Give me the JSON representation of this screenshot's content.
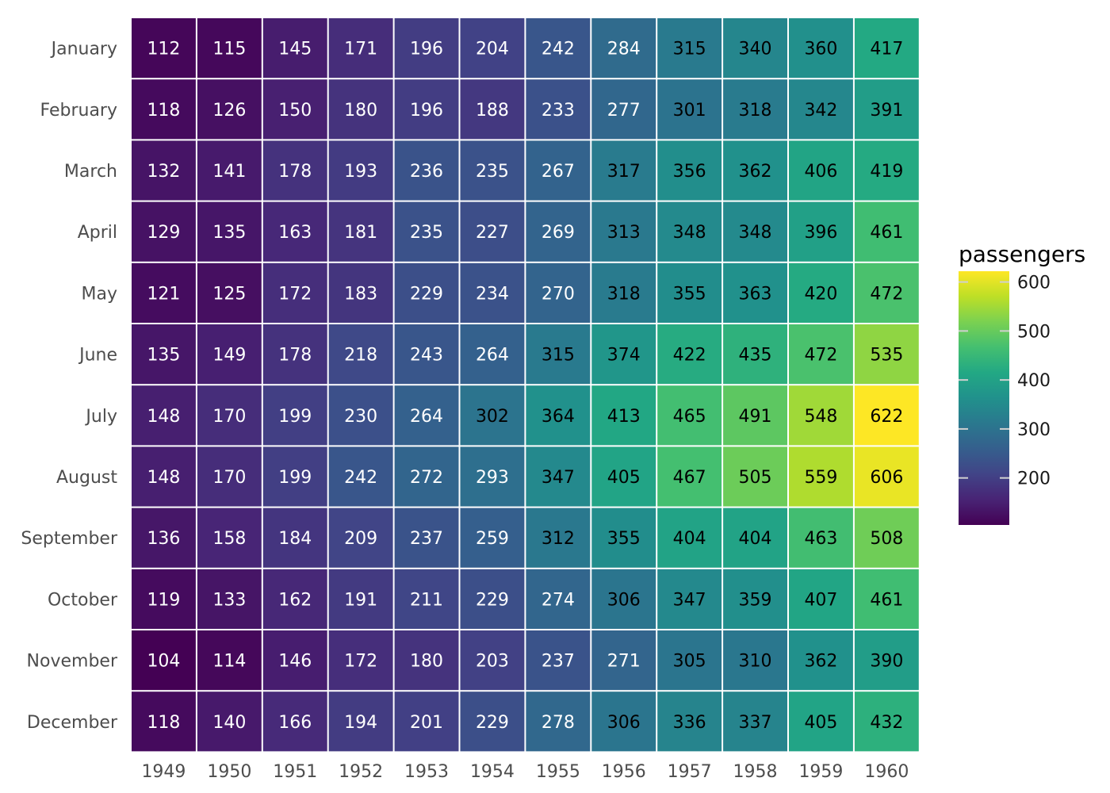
{
  "chart_data": {
    "type": "heatmap",
    "title": "",
    "xlabel": "",
    "ylabel": "",
    "x": [
      "1949",
      "1950",
      "1951",
      "1952",
      "1953",
      "1954",
      "1955",
      "1956",
      "1957",
      "1958",
      "1959",
      "1960"
    ],
    "y": [
      "January",
      "February",
      "March",
      "April",
      "May",
      "June",
      "July",
      "August",
      "September",
      "October",
      "November",
      "December"
    ],
    "values": [
      [
        112,
        115,
        145,
        171,
        196,
        204,
        242,
        284,
        315,
        340,
        360,
        417
      ],
      [
        118,
        126,
        150,
        180,
        196,
        188,
        233,
        277,
        301,
        318,
        342,
        391
      ],
      [
        132,
        141,
        178,
        193,
        236,
        235,
        267,
        317,
        356,
        362,
        406,
        419
      ],
      [
        129,
        135,
        163,
        181,
        235,
        227,
        269,
        313,
        348,
        348,
        396,
        461
      ],
      [
        121,
        125,
        172,
        183,
        229,
        234,
        270,
        318,
        355,
        363,
        420,
        472
      ],
      [
        135,
        149,
        178,
        218,
        243,
        264,
        315,
        374,
        422,
        435,
        472,
        535
      ],
      [
        148,
        170,
        199,
        230,
        264,
        302,
        364,
        413,
        465,
        491,
        548,
        622
      ],
      [
        148,
        170,
        199,
        242,
        272,
        293,
        347,
        405,
        467,
        505,
        559,
        606
      ],
      [
        136,
        158,
        184,
        209,
        237,
        259,
        312,
        355,
        404,
        404,
        463,
        508
      ],
      [
        119,
        133,
        162,
        191,
        211,
        229,
        274,
        306,
        347,
        359,
        407,
        461
      ],
      [
        104,
        114,
        146,
        172,
        180,
        203,
        237,
        271,
        305,
        310,
        362,
        390
      ],
      [
        118,
        140,
        166,
        194,
        201,
        229,
        278,
        306,
        336,
        337,
        405,
        432
      ]
    ],
    "colorbar": {
      "title": "passengers",
      "min": 104,
      "max": 622,
      "ticks": [
        200,
        300,
        400,
        500,
        600
      ],
      "colormap": "viridis"
    },
    "cell_border_color": "#ffffff",
    "text_color_light": "#ffffff",
    "text_color_dark": "#000000",
    "text_threshold": 300
  }
}
